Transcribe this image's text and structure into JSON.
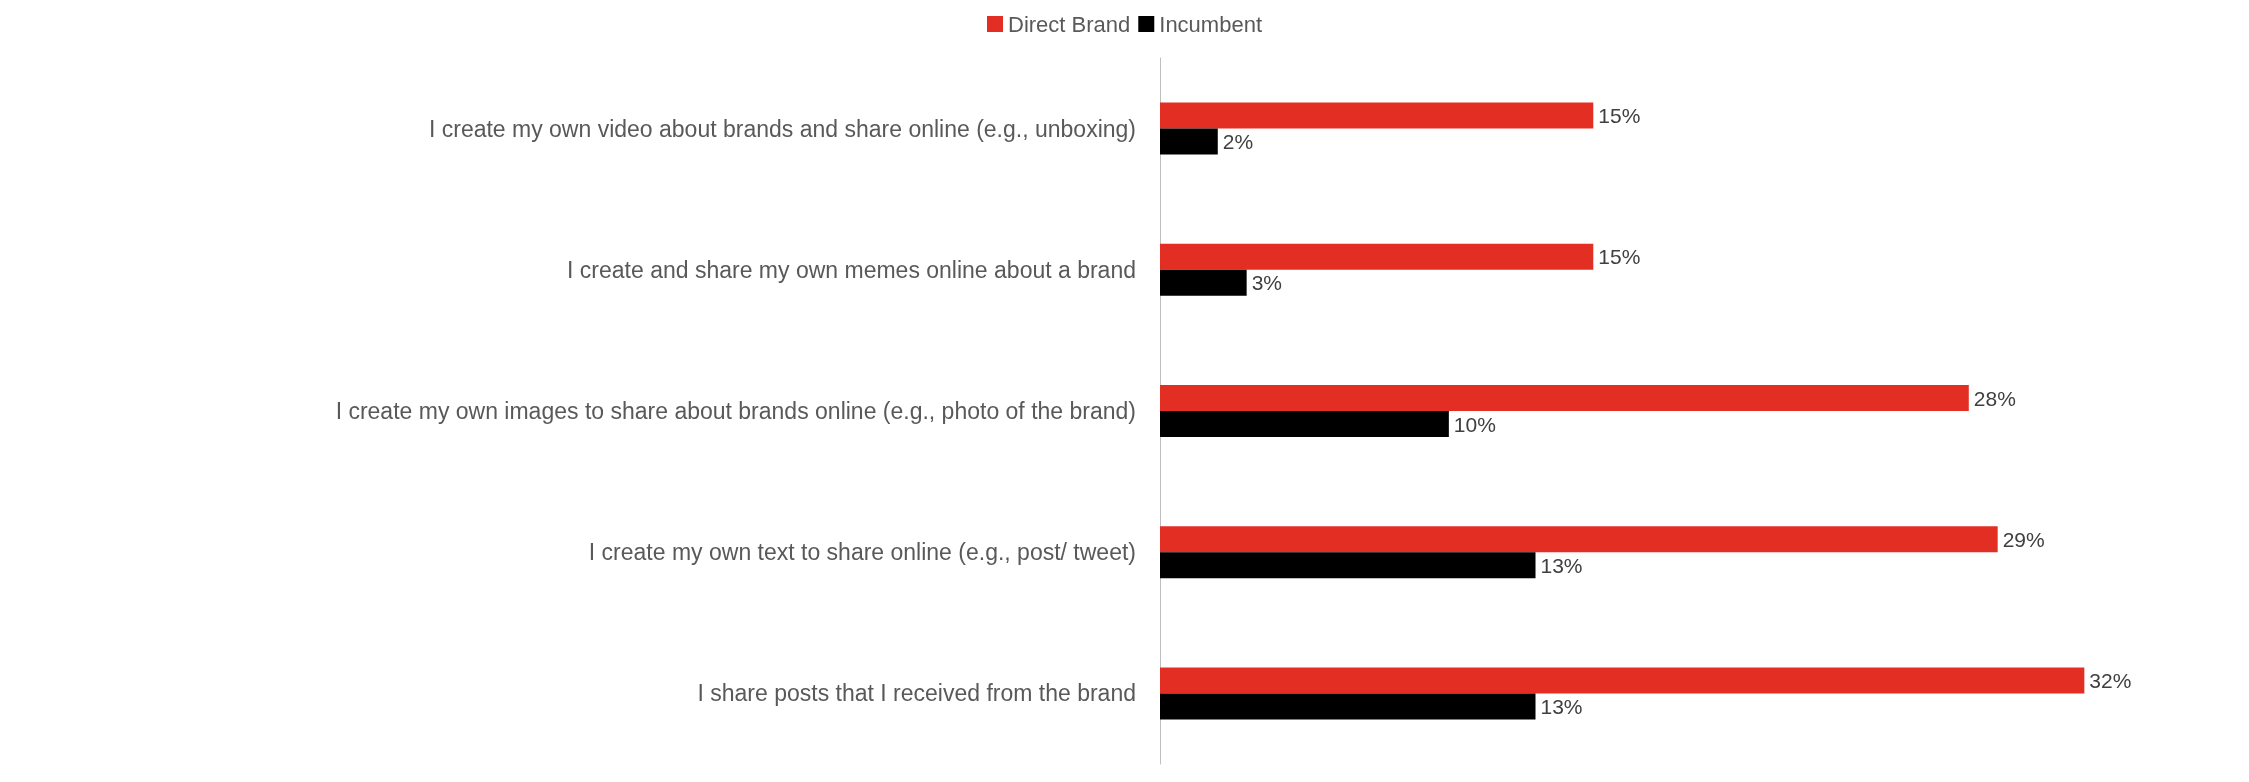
{
  "chart_data": {
    "type": "bar",
    "orientation": "horizontal",
    "legend": "top",
    "categories": [
      "I create my own video about brands and share online (e.g., unboxing)",
      "I create and share my own memes online about a brand",
      "I create my own images to share about brands online (e.g., photo of the brand)",
      "I create my own text to share online (e.g., post/ tweet)",
      "I share posts that I received from the brand"
    ],
    "series": [
      {
        "name": "Direct Brand",
        "color": "#e32f23",
        "values": [
          15,
          15,
          28,
          29,
          32
        ],
        "value_labels": [
          "15%",
          "15%",
          "28%",
          "29%",
          "32%"
        ]
      },
      {
        "name": "Incumbent",
        "color": "#000000",
        "values": [
          2,
          3,
          10,
          13,
          13
        ],
        "value_labels": [
          "2%",
          "3%",
          "10%",
          "13%",
          "13%"
        ]
      }
    ]
  }
}
